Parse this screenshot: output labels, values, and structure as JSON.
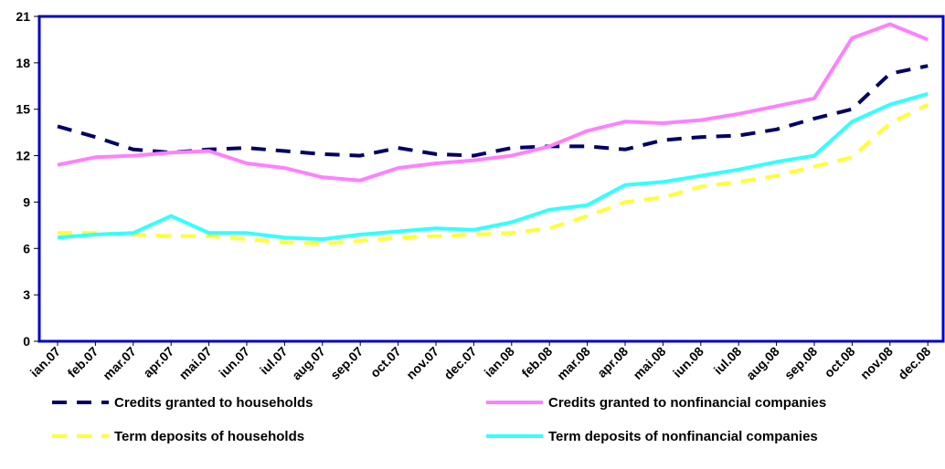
{
  "chart_data": {
    "type": "line",
    "title": "",
    "xlabel": "",
    "ylabel": "",
    "categories": [
      "ian.07",
      "feb.07",
      "mar.07",
      "apr.07",
      "mai.07",
      "iun.07",
      "iul.07",
      "aug.07",
      "sep.07",
      "oct.07",
      "nov.07",
      "dec.07",
      "ian.08",
      "feb.08",
      "mar.08",
      "apr.08",
      "mai.08",
      "iun.08",
      "iul.08",
      "aug.08",
      "sep.08",
      "oct.08",
      "nov.08",
      "dec.08"
    ],
    "ylim": [
      0,
      21
    ],
    "yticks": [
      0,
      3,
      6,
      9,
      12,
      15,
      18,
      21
    ],
    "grid": false,
    "legend_position": "bottom",
    "series": [
      {
        "name": "Credits granted to households",
        "color": "#000066",
        "dash": "long-dash",
        "values": [
          13.9,
          13.2,
          12.4,
          12.2,
          12.4,
          12.5,
          12.3,
          12.1,
          12.0,
          12.5,
          12.1,
          12.0,
          12.5,
          12.6,
          12.6,
          12.4,
          13.0,
          13.2,
          13.3,
          13.7,
          14.4,
          15.0,
          17.3,
          17.8
        ]
      },
      {
        "name": "Credits granted to nonfinancial companies",
        "color": "#ff80ff",
        "dash": "solid",
        "values": [
          11.4,
          11.9,
          12.0,
          12.2,
          12.3,
          11.5,
          11.2,
          10.6,
          10.4,
          11.2,
          11.5,
          11.7,
          12.0,
          12.6,
          13.6,
          14.2,
          14.1,
          14.3,
          14.7,
          15.2,
          15.7,
          19.6,
          20.5,
          19.5
        ]
      },
      {
        "name": "Term deposits of households",
        "color": "#ffff33",
        "dash": "long-dash",
        "values": [
          7.0,
          7.0,
          6.9,
          6.8,
          6.8,
          6.6,
          6.4,
          6.3,
          6.5,
          6.7,
          6.8,
          6.9,
          7.0,
          7.3,
          8.1,
          9.0,
          9.3,
          10.0,
          10.3,
          10.7,
          11.3,
          11.9,
          14.1,
          15.3
        ]
      },
      {
        "name": "Term deposits of nonfinancial companies",
        "color": "#33ffff",
        "dash": "solid",
        "values": [
          6.7,
          6.9,
          7.0,
          8.1,
          7.0,
          7.0,
          6.7,
          6.6,
          6.9,
          7.1,
          7.3,
          7.2,
          7.7,
          8.5,
          8.8,
          10.1,
          10.3,
          10.7,
          11.1,
          11.6,
          12.0,
          14.2,
          15.3,
          16.0
        ]
      }
    ]
  }
}
